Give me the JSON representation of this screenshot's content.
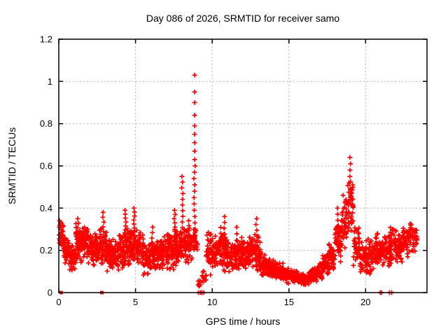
{
  "chart_data": {
    "type": "scatter",
    "title": "Day 086 of 2026, SRMTID for receiver samo",
    "xlabel": "GPS time / hours",
    "ylabel": "SRMTID / TECUs",
    "xlim": [
      0,
      24
    ],
    "ylim": [
      0,
      1.2
    ],
    "x_ticks": [
      [
        0,
        "0"
      ],
      [
        5,
        "5"
      ],
      [
        10,
        "10"
      ],
      [
        15,
        "15"
      ],
      [
        20,
        "20"
      ]
    ],
    "y_ticks": [
      [
        0,
        "0"
      ],
      [
        0.2,
        "0.2"
      ],
      [
        0.4,
        "0.4"
      ],
      [
        0.6,
        "0.6"
      ],
      [
        0.8,
        "0.8"
      ],
      [
        1,
        "1"
      ],
      [
        1.2,
        "1.2"
      ]
    ],
    "grid": true,
    "legend": "none",
    "marker": "plus",
    "colors": {
      "marker": "#ff0000",
      "grid": "#b4b4b4",
      "axis": "#000000",
      "text": "#000000",
      "background": "#ffffff"
    },
    "max_point": {
      "x": 8.85,
      "y": 1.03
    },
    "spike_column": {
      "x": 8.85,
      "ys": [
        1.03,
        0.95,
        0.9,
        0.84,
        0.79,
        0.75,
        0.71,
        0.67,
        0.63,
        0.6,
        0.57,
        0.54,
        0.51,
        0.48,
        0.45,
        0.42,
        0.39,
        0.36,
        0.33,
        0.3,
        0.27,
        0.25
      ]
    },
    "peak_column": {
      "x": 18.98,
      "ys": [
        0.64,
        0.61,
        0.58,
        0.55,
        0.52,
        0.49,
        0.46,
        0.44
      ]
    },
    "zero_square_points": [
      [
        0.15,
        0
      ],
      [
        2.8,
        0
      ]
    ],
    "zero_plus_points": [
      [
        9.1,
        0
      ],
      [
        9.22,
        0
      ],
      [
        9.32,
        0
      ],
      [
        9.45,
        0
      ],
      [
        20.95,
        0
      ],
      [
        21.05,
        0
      ],
      [
        21.55,
        0
      ],
      [
        21.7,
        0
      ]
    ],
    "columns": [
      [
        1.25,
        0.2,
        0.35,
        8
      ],
      [
        2.9,
        0.22,
        0.38,
        8
      ],
      [
        4.35,
        0.26,
        0.39,
        8
      ],
      [
        4.92,
        0.25,
        0.4,
        9
      ],
      [
        6.1,
        0.18,
        0.31,
        6
      ],
      [
        7.55,
        0.25,
        0.39,
        8
      ],
      [
        8.05,
        0.28,
        0.55,
        11
      ],
      [
        8.45,
        0.2,
        0.34,
        7
      ],
      [
        10.78,
        0.14,
        0.36,
        9
      ],
      [
        11.6,
        0.12,
        0.31,
        7
      ],
      [
        12.88,
        0.13,
        0.35,
        9
      ],
      [
        18.2,
        0.2,
        0.4,
        8
      ]
    ],
    "bands": [
      [
        0.02,
        0.3,
        0.2,
        0.35,
        40
      ],
      [
        0.3,
        0.7,
        0.13,
        0.29,
        48
      ],
      [
        0.7,
        1.1,
        0.1,
        0.24,
        50
      ],
      [
        1.1,
        1.5,
        0.13,
        0.34,
        52
      ],
      [
        1.5,
        1.9,
        0.14,
        0.33,
        52
      ],
      [
        1.9,
        2.3,
        0.12,
        0.3,
        50
      ],
      [
        2.3,
        2.7,
        0.13,
        0.3,
        50
      ],
      [
        2.7,
        3.1,
        0.12,
        0.32,
        50
      ],
      [
        3.1,
        3.5,
        0.1,
        0.28,
        50
      ],
      [
        3.5,
        3.9,
        0.1,
        0.26,
        46
      ],
      [
        3.9,
        4.3,
        0.11,
        0.3,
        48
      ],
      [
        4.3,
        4.7,
        0.12,
        0.32,
        48
      ],
      [
        4.7,
        5.1,
        0.13,
        0.32,
        48
      ],
      [
        5.1,
        5.5,
        0.12,
        0.3,
        46
      ],
      [
        5.5,
        5.9,
        0.07,
        0.24,
        46
      ],
      [
        5.9,
        6.3,
        0.09,
        0.27,
        46
      ],
      [
        6.3,
        6.7,
        0.1,
        0.28,
        46
      ],
      [
        6.7,
        7.1,
        0.1,
        0.29,
        46
      ],
      [
        7.1,
        7.5,
        0.1,
        0.3,
        46
      ],
      [
        7.5,
        7.9,
        0.12,
        0.31,
        46
      ],
      [
        7.9,
        8.3,
        0.14,
        0.34,
        44
      ],
      [
        8.3,
        8.7,
        0.14,
        0.33,
        44
      ],
      [
        8.7,
        9.05,
        0.18,
        0.32,
        30
      ],
      [
        9.05,
        9.25,
        0.02,
        0.09,
        8
      ],
      [
        9.25,
        9.6,
        0.03,
        0.12,
        12
      ],
      [
        9.6,
        10.0,
        0.08,
        0.3,
        34
      ],
      [
        10.0,
        10.4,
        0.1,
        0.28,
        44
      ],
      [
        10.4,
        10.8,
        0.1,
        0.32,
        44
      ],
      [
        10.8,
        11.2,
        0.08,
        0.28,
        44
      ],
      [
        11.2,
        11.6,
        0.08,
        0.25,
        44
      ],
      [
        11.6,
        12.0,
        0.1,
        0.3,
        44
      ],
      [
        12.0,
        12.4,
        0.08,
        0.26,
        44
      ],
      [
        12.4,
        12.8,
        0.1,
        0.3,
        44
      ],
      [
        12.8,
        13.2,
        0.08,
        0.28,
        44
      ],
      [
        13.2,
        13.6,
        0.07,
        0.18,
        44
      ],
      [
        13.6,
        14.0,
        0.06,
        0.17,
        44
      ],
      [
        14.0,
        14.4,
        0.06,
        0.15,
        44
      ],
      [
        14.4,
        14.8,
        0.05,
        0.14,
        44
      ],
      [
        14.8,
        15.2,
        0.04,
        0.12,
        44
      ],
      [
        15.2,
        15.6,
        0.04,
        0.11,
        44
      ],
      [
        15.6,
        16.0,
        0.03,
        0.1,
        44
      ],
      [
        16.0,
        16.4,
        0.03,
        0.1,
        44
      ],
      [
        16.4,
        16.8,
        0.04,
        0.12,
        44
      ],
      [
        16.8,
        17.2,
        0.06,
        0.15,
        44
      ],
      [
        17.2,
        17.6,
        0.08,
        0.19,
        44
      ],
      [
        17.6,
        18.0,
        0.1,
        0.25,
        44
      ],
      [
        18.0,
        18.4,
        0.13,
        0.34,
        44
      ],
      [
        18.4,
        18.8,
        0.2,
        0.48,
        46
      ],
      [
        18.8,
        19.2,
        0.24,
        0.57,
        46
      ],
      [
        19.2,
        19.6,
        0.12,
        0.33,
        40
      ],
      [
        19.6,
        20.0,
        0.08,
        0.25,
        40
      ],
      [
        20.0,
        20.4,
        0.08,
        0.27,
        40
      ],
      [
        20.4,
        20.8,
        0.1,
        0.3,
        40
      ],
      [
        20.8,
        21.2,
        0.1,
        0.28,
        40
      ],
      [
        21.2,
        21.6,
        0.12,
        0.3,
        40
      ],
      [
        21.6,
        22.0,
        0.12,
        0.33,
        40
      ],
      [
        22.0,
        22.4,
        0.13,
        0.3,
        40
      ],
      [
        22.4,
        22.8,
        0.16,
        0.33,
        40
      ],
      [
        22.8,
        23.35,
        0.18,
        0.34,
        46
      ]
    ]
  }
}
